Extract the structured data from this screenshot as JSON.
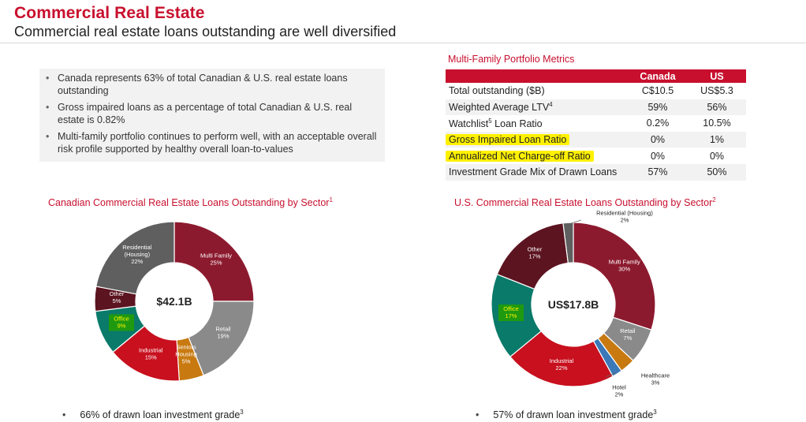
{
  "header": {
    "title": "Commercial Real Estate",
    "subtitle": "Commercial real estate loans outstanding are well diversified"
  },
  "bullets": [
    "Canada represents 63% of total Canadian & U.S. real estate loans outstanding",
    "Gross impaired loans as a percentage of total Canadian & U.S. real estate is 0.82%",
    "Multi-family portfolio continues to perform well, with an acceptable overall risk profile supported by healthy overall loan-to-values"
  ],
  "metrics": {
    "title": "Multi-Family Portfolio Metrics",
    "columns": [
      "Canada",
      "US"
    ],
    "rows": [
      {
        "label": "Total outstanding ($B)",
        "sup": "",
        "canada": "C$10.5",
        "us": "US$5.3"
      },
      {
        "label": "Weighted Average LTV",
        "sup": "4",
        "canada": "59%",
        "us": "56%"
      },
      {
        "label": "Watchlist",
        "sup": "5",
        "label_rest": " Loan Ratio",
        "canada": "0.2%",
        "us": "10.5%"
      },
      {
        "label": "Gross Impaired Loan Ratio",
        "sup": "",
        "canada": "0%",
        "us": "1%"
      },
      {
        "label": "Annualized Net Charge-off Ratio",
        "sup": "",
        "canada": "0%",
        "us": "0%"
      },
      {
        "label": "Investment Grade Mix of Drawn Loans",
        "sup": "",
        "canada": "57%",
        "us": "50%"
      }
    ]
  },
  "chart_data": [
    {
      "type": "pie",
      "title": "Canadian Commercial Real Estate Loans Outstanding by Sector",
      "title_sup": "1",
      "center_label": "$42.1B",
      "categories": [
        "Multi Family",
        "Retail",
        "Seniors Housing",
        "Industrial",
        "Office",
        "Other",
        "Residential (Housing)"
      ],
      "values": [
        25,
        19,
        5,
        15,
        9,
        5,
        22
      ],
      "value_labels": [
        "25%",
        "19%",
        "5%",
        "15%",
        "9%",
        "5%",
        "22%"
      ],
      "colors": [
        "#8c1a2e",
        "#8a8a8a",
        "#c87a10",
        "#c8101e",
        "#0a7a6a",
        "#5c1420",
        "#5f5f5f"
      ],
      "footnote": "66% of drawn loan investment grade",
      "footnote_sup": "3"
    },
    {
      "type": "pie",
      "title": "U.S. Commercial Real Estate Loans Outstanding by Sector",
      "title_sup": "2",
      "center_label": "US$17.8B",
      "categories": [
        "Multi Family",
        "Retail",
        "Healthcare",
        "Hotel",
        "Industrial",
        "Office",
        "Other",
        "Residential (Housing)"
      ],
      "values": [
        30,
        7,
        3,
        2,
        22,
        17,
        17,
        2
      ],
      "value_labels": [
        "30%",
        "7%",
        "3%",
        "2%",
        "22%",
        "17%",
        "17%",
        "2%"
      ],
      "colors": [
        "#8c1a2e",
        "#8a8a8a",
        "#c87a10",
        "#3a78b8",
        "#c8101e",
        "#0a7a6a",
        "#5c1420",
        "#5f5f5f"
      ],
      "footnote": "57% of drawn loan investment grade",
      "footnote_sup": "3"
    }
  ]
}
